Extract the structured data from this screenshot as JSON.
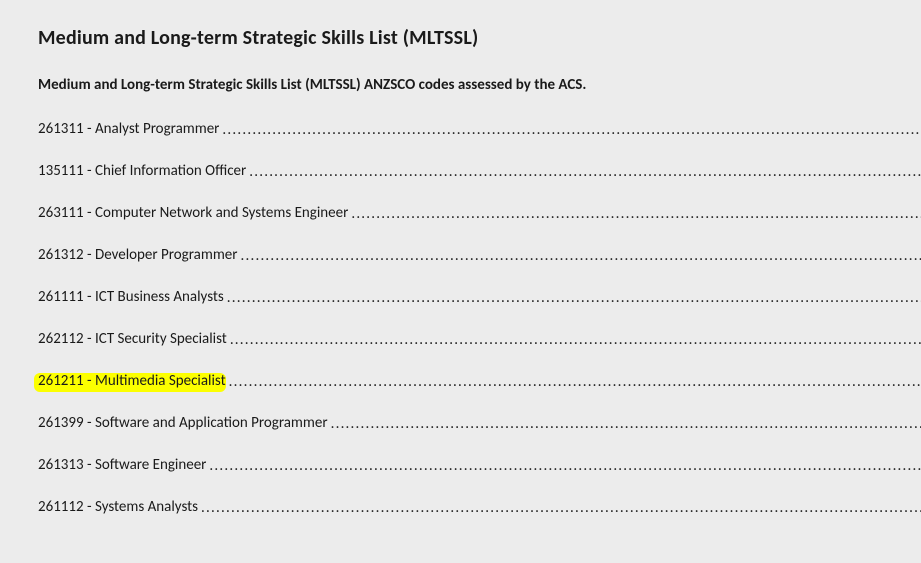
{
  "title": "Medium and Long-term Strategic Skills List (MLTSSL)",
  "subtitle": "Medium and Long-term Strategic Skills List (MLTSSL) ANZSCO codes assessed by the ACS.",
  "entries": [
    {
      "code": "261311",
      "name": "Analyst Programmer",
      "highlighted": false
    },
    {
      "code": "135111",
      "name": "Chief Information Officer",
      "highlighted": false
    },
    {
      "code": "263111",
      "name": "Computer Network and Systems Engineer",
      "highlighted": false
    },
    {
      "code": "261312",
      "name": "Developer Programmer",
      "highlighted": false
    },
    {
      "code": "261111",
      "name": "ICT Business Analysts",
      "highlighted": false
    },
    {
      "code": "262112",
      "name": "ICT Security Specialist",
      "highlighted": false
    },
    {
      "code": "261211",
      "name": "Multimedia Specialist",
      "highlighted": true
    },
    {
      "code": "261399",
      "name": "Software and Application Programmer",
      "highlighted": false
    },
    {
      "code": "261313",
      "name": "Software Engineer",
      "highlighted": false
    },
    {
      "code": "261112",
      "name": "Systems Analysts",
      "highlighted": false
    }
  ],
  "colors": {
    "background": "#ececec",
    "text": "#1a1a1a",
    "highlight": "#fcff00"
  },
  "typography": {
    "title_fontsize_pt": 15,
    "body_fontsize_pt": 11,
    "font_family": "Calibri"
  }
}
